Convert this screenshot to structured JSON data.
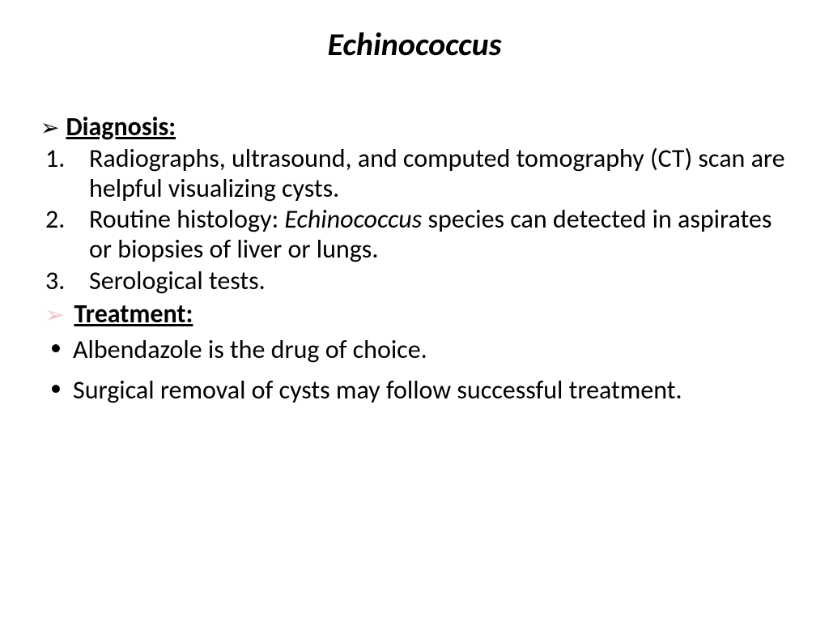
{
  "title": "Echinococcus",
  "sections": {
    "diagnosis": {
      "header": "Diagnosis:",
      "items": [
        {
          "num": "1.",
          "text": "Radiographs, ultrasound, and computed tomography (CT) scan are helpful visualizing cysts."
        },
        {
          "num": "2.",
          "text_prefix": "Routine histology: ",
          "text_italic": "Echinococcus",
          "text_suffix": " species can detected in aspirates or biopsies of liver or lungs."
        },
        {
          "num": "3.",
          "text": "Serological tests."
        }
      ]
    },
    "treatment": {
      "header": "Treatment:",
      "items": [
        "Albendazole is the drug of choice.",
        "Surgical removal of cysts may follow successful treatment."
      ]
    }
  },
  "styling": {
    "background_color": "#ffffff",
    "text_color": "#000000",
    "arrow_light_color": "#f0c0c0",
    "title_fontsize": 40,
    "body_fontsize": 32,
    "font_family": "Calibri"
  }
}
